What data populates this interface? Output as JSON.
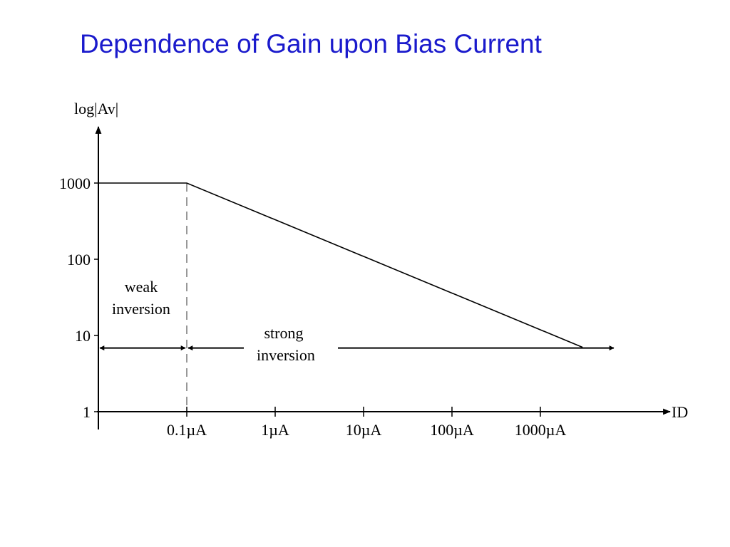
{
  "slide": {
    "title": "Dependence of Gain upon Bias Current"
  },
  "chart_data": {
    "type": "line",
    "title": "Dependence of Gain upon Bias Current",
    "ylabel": "log|Av|",
    "xlabel": "ID",
    "y_scale": "log",
    "x_scale": "log",
    "y_ticks": [
      "1",
      "10",
      "100",
      "1000"
    ],
    "x_ticks": [
      "0.1µA",
      "1µA",
      "10µA",
      "100µA",
      "1000µA"
    ],
    "series": [
      {
        "points": [
          {
            "x": 0.01,
            "y": 1000
          },
          {
            "x": 0.1,
            "y": 1000
          },
          {
            "x": 3000,
            "y": 7
          }
        ]
      }
    ],
    "regions": [
      {
        "label_line1": "weak",
        "label_line2": "inversion",
        "from": 0.01,
        "to": 0.1
      },
      {
        "label_line1": "strong",
        "label_line2": "inversion",
        "from": 0.1,
        "to": 10000
      }
    ],
    "boundary_x": 0.1,
    "region_arrow_y": 7,
    "grid": false,
    "colors": {
      "line": "#000000",
      "title": "#1a1acc"
    }
  }
}
